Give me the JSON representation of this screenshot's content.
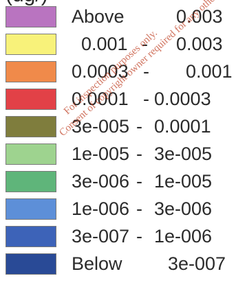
{
  "legend": {
    "header_fragment": "(ug/)",
    "rows": [
      {
        "color": "#b974c0",
        "left": "Above",
        "mid": "",
        "right": "0.003"
      },
      {
        "color": "#f8f27a",
        "left": "0.001",
        "mid": "-",
        "right": "0.003"
      },
      {
        "color": "#f08a4a",
        "left": "0.0003",
        "mid": "-",
        "right": "0.001"
      },
      {
        "color": "#e24147",
        "left": "0.0001",
        "mid": "-",
        "right": "0.0003"
      },
      {
        "color": "#7f7d3d",
        "left": "3e-005",
        "mid": "-",
        "right": "0.0001"
      },
      {
        "color": "#9ed38f",
        "left": "1e-005",
        "mid": "-",
        "right": "3e-005"
      },
      {
        "color": "#5fb57a",
        "left": "3e-006",
        "mid": "-",
        "right": "1e-005"
      },
      {
        "color": "#5d8fd8",
        "left": "1e-006",
        "mid": "-",
        "right": "3e-006"
      },
      {
        "color": "#3d63b8",
        "left": "3e-007",
        "mid": "-",
        "right": "1e-006"
      },
      {
        "color": "#294a96",
        "left": "Below",
        "mid": "",
        "right": "3e-007"
      }
    ]
  },
  "watermark": {
    "line1": "For inspection purposes only.",
    "line2": "Consent of copyright owner required for any other use."
  }
}
